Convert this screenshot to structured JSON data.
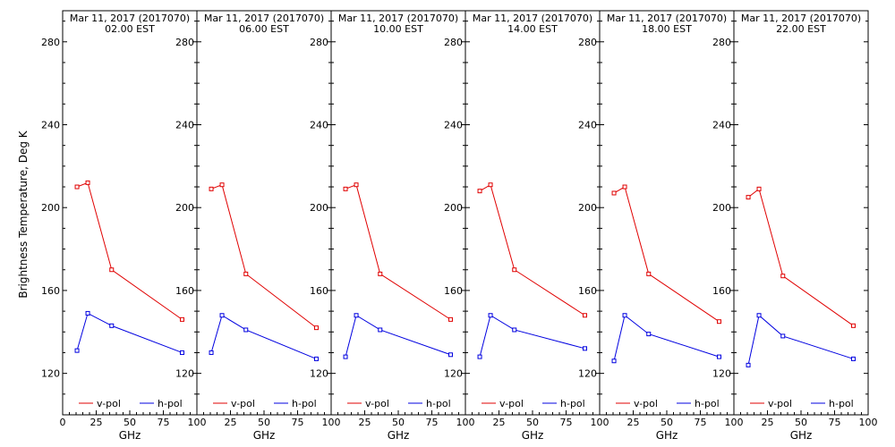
{
  "figure": {
    "ylabel": "Brightness Temperature, Deg K",
    "xlabel": "GHz",
    "colors": {
      "v_pol": "#e00000",
      "h_pol": "#0000e0",
      "axes": "#000000"
    }
  },
  "chart_data": [
    {
      "type": "line",
      "title": "Mar 11, 2017 (2017070)",
      "subtitle": "02.00 EST",
      "xlabel": "GHz",
      "ylabel": "Brightness Temperature, Deg K",
      "xlim": [
        0,
        100
      ],
      "ylim": [
        100,
        295
      ],
      "xticks": [
        0,
        25,
        50,
        75,
        100
      ],
      "yticks": [
        120,
        160,
        200,
        240,
        280
      ],
      "legend": "bottom",
      "series": [
        {
          "name": "v-pol",
          "color": "#e00000",
          "x": [
            10.7,
            18.7,
            36.5,
            89.0
          ],
          "y": [
            210,
            212,
            170,
            146
          ]
        },
        {
          "name": "h-pol",
          "color": "#0000e0",
          "x": [
            10.7,
            18.7,
            36.5,
            89.0
          ],
          "y": [
            131,
            149,
            143,
            130
          ]
        }
      ]
    },
    {
      "type": "line",
      "title": "Mar 11, 2017 (2017070)",
      "subtitle": "06.00 EST",
      "xlabel": "GHz",
      "xlim": [
        0,
        100
      ],
      "ylim": [
        100,
        295
      ],
      "xticks": [
        0,
        25,
        50,
        75,
        100
      ],
      "yticks": [
        120,
        160,
        200,
        240,
        280
      ],
      "legend": "bottom",
      "series": [
        {
          "name": "v-pol",
          "color": "#e00000",
          "x": [
            10.7,
            18.7,
            36.5,
            89.0
          ],
          "y": [
            209,
            211,
            168,
            142
          ]
        },
        {
          "name": "h-pol",
          "color": "#0000e0",
          "x": [
            10.7,
            18.7,
            36.5,
            89.0
          ],
          "y": [
            130,
            148,
            141,
            127
          ]
        }
      ]
    },
    {
      "type": "line",
      "title": "Mar 11, 2017 (2017070)",
      "subtitle": "10.00 EST",
      "xlabel": "GHz",
      "xlim": [
        0,
        100
      ],
      "ylim": [
        100,
        295
      ],
      "xticks": [
        0,
        25,
        50,
        75,
        100
      ],
      "yticks": [
        120,
        160,
        200,
        240,
        280
      ],
      "legend": "bottom",
      "series": [
        {
          "name": "v-pol",
          "color": "#e00000",
          "x": [
            10.7,
            18.7,
            36.5,
            89.0
          ],
          "y": [
            209,
            211,
            168,
            146
          ]
        },
        {
          "name": "h-pol",
          "color": "#0000e0",
          "x": [
            10.7,
            18.7,
            36.5,
            89.0
          ],
          "y": [
            128,
            148,
            141,
            129
          ]
        }
      ]
    },
    {
      "type": "line",
      "title": "Mar 11, 2017 (2017070)",
      "subtitle": "14.00 EST",
      "xlabel": "GHz",
      "xlim": [
        0,
        100
      ],
      "ylim": [
        100,
        295
      ],
      "xticks": [
        0,
        25,
        50,
        75,
        100
      ],
      "yticks": [
        120,
        160,
        200,
        240,
        280
      ],
      "legend": "bottom",
      "series": [
        {
          "name": "v-pol",
          "color": "#e00000",
          "x": [
            10.7,
            18.7,
            36.5,
            89.0
          ],
          "y": [
            208,
            211,
            170,
            148
          ]
        },
        {
          "name": "h-pol",
          "color": "#0000e0",
          "x": [
            10.7,
            18.7,
            36.5,
            89.0
          ],
          "y": [
            128,
            148,
            141,
            132
          ]
        }
      ]
    },
    {
      "type": "line",
      "title": "Mar 11, 2017 (2017070)",
      "subtitle": "18.00 EST",
      "xlabel": "GHz",
      "xlim": [
        0,
        100
      ],
      "ylim": [
        100,
        295
      ],
      "xticks": [
        0,
        25,
        50,
        75,
        100
      ],
      "yticks": [
        120,
        160,
        200,
        240,
        280
      ],
      "legend": "bottom",
      "series": [
        {
          "name": "v-pol",
          "color": "#e00000",
          "x": [
            10.7,
            18.7,
            36.5,
            89.0
          ],
          "y": [
            207,
            210,
            168,
            145
          ]
        },
        {
          "name": "h-pol",
          "color": "#0000e0",
          "x": [
            10.7,
            18.7,
            36.5,
            89.0
          ],
          "y": [
            126,
            148,
            139,
            128
          ]
        }
      ]
    },
    {
      "type": "line",
      "title": "Mar 11, 2017 (2017070)",
      "subtitle": "22.00 EST",
      "xlabel": "GHz",
      "xlim": [
        0,
        100
      ],
      "ylim": [
        100,
        295
      ],
      "xticks": [
        0,
        25,
        50,
        75,
        100
      ],
      "yticks": [
        120,
        160,
        200,
        240,
        280
      ],
      "legend": "bottom",
      "series": [
        {
          "name": "v-pol",
          "color": "#e00000",
          "x": [
            10.7,
            18.7,
            36.5,
            89.0
          ],
          "y": [
            205,
            209,
            167,
            143
          ]
        },
        {
          "name": "h-pol",
          "color": "#0000e0",
          "x": [
            10.7,
            18.7,
            36.5,
            89.0
          ],
          "y": [
            124,
            148,
            138,
            127
          ]
        }
      ]
    }
  ]
}
